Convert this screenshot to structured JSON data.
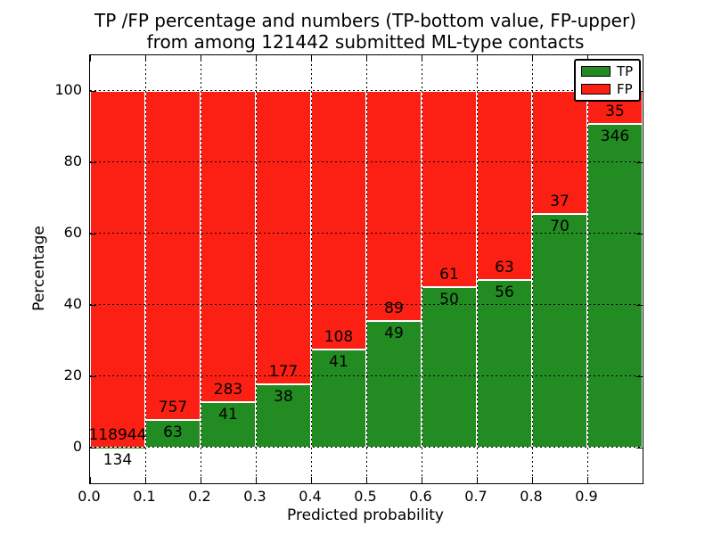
{
  "figure": {
    "title_line1": "TP /FP percentage and numbers (TP-bottom value, FP-upper)",
    "title_line2": "from among 121442 submitted ML-type contacts"
  },
  "axes": {
    "xlabel": "Predicted probability",
    "ylabel": "Percentage",
    "xtick_labels": [
      "0.0",
      "0.1",
      "0.2",
      "0.3",
      "0.4",
      "0.5",
      "0.6",
      "0.7",
      "0.8",
      "0.9"
    ],
    "ytick_labels": [
      "0",
      "20",
      "40",
      "60",
      "80",
      "100"
    ],
    "ytick_values": [
      0,
      20,
      40,
      60,
      80,
      100
    ]
  },
  "legend": {
    "items": [
      {
        "label": "TP",
        "color": "#228b22"
      },
      {
        "label": "FP",
        "color": "#fb2013"
      }
    ]
  },
  "chart_data": {
    "type": "bar",
    "stacked": true,
    "title": "TP /FP percentage and numbers (TP-bottom value, FP-upper) from among 121442 submitted ML-type contacts",
    "xlabel": "Predicted probability",
    "ylabel": "Percentage",
    "xlim": [
      0.0,
      1.0
    ],
    "ylim": [
      -10,
      110
    ],
    "grid": true,
    "legend_position": "upper right",
    "bin_edges": [
      0.0,
      0.1,
      0.2,
      0.3,
      0.4,
      0.5,
      0.6,
      0.7,
      0.8,
      0.9,
      1.0
    ],
    "series": [
      {
        "name": "TP",
        "color": "#228b22",
        "counts": [
          134,
          63,
          41,
          38,
          41,
          49,
          50,
          56,
          70,
          346
        ]
      },
      {
        "name": "FP",
        "color": "#fb2013",
        "counts": [
          118944,
          757,
          283,
          177,
          108,
          89,
          61,
          63,
          37,
          35
        ]
      }
    ],
    "tp_percent_per_bin": [
      0.11,
      7.68,
      12.65,
      17.67,
      27.52,
      35.51,
      45.05,
      47.06,
      65.42,
      90.81
    ],
    "total_contacts": 121442
  }
}
